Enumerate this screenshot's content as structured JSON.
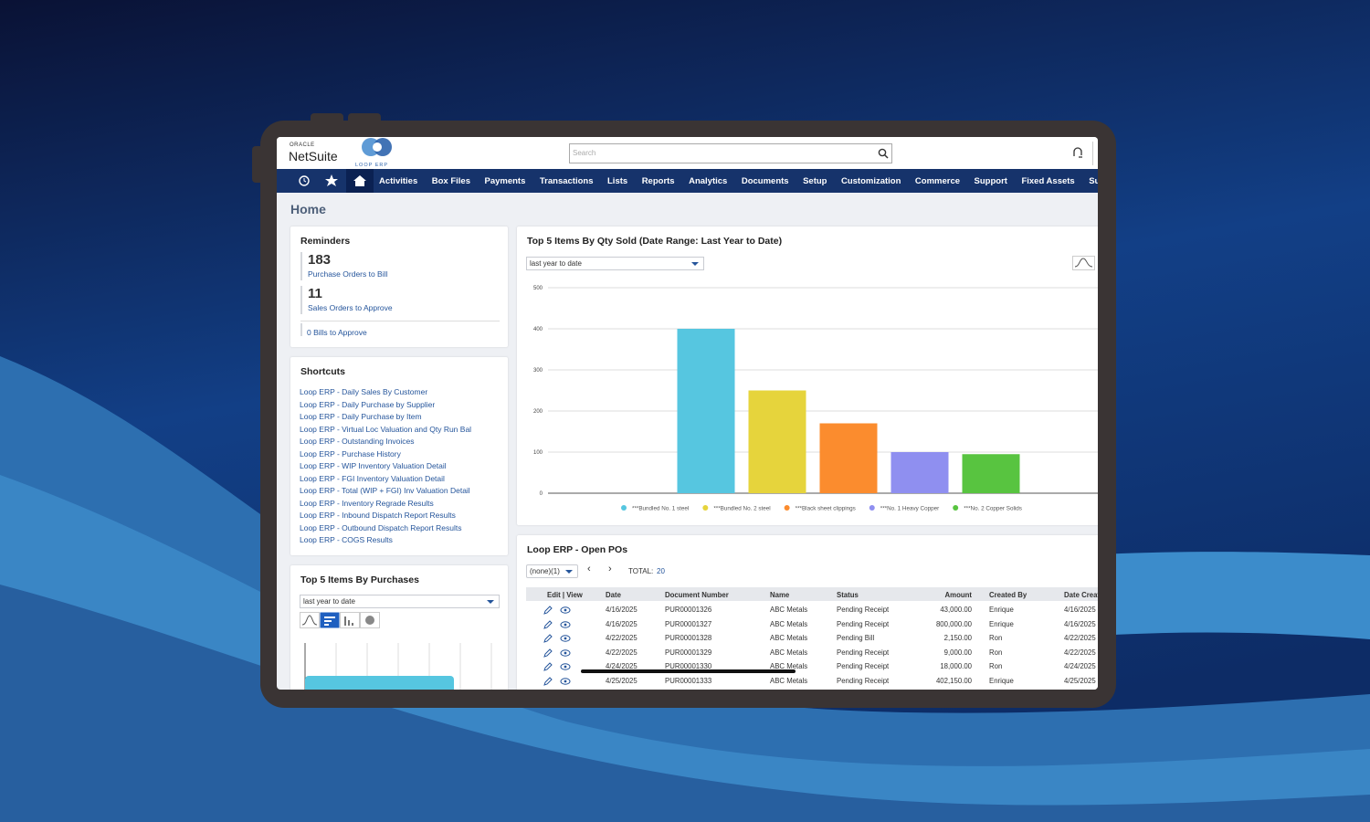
{
  "header": {
    "brand_small": "ORACLE",
    "brand": "NetSuite",
    "logo_text": "LOOP ERP",
    "search_placeholder": "Search"
  },
  "nav": [
    "Activities",
    "Box Files",
    "Payments",
    "Transactions",
    "Lists",
    "Reports",
    "Analytics",
    "Documents",
    "Setup",
    "Customization",
    "Commerce",
    "Support",
    "Fixed Assets",
    "SuiteSocial"
  ],
  "page_title": "Home",
  "reminders": {
    "title": "Reminders",
    "items": [
      {
        "count": 183,
        "label": "Purchase Orders to Bill"
      },
      {
        "count": 11,
        "label": "Sales Orders to Approve"
      }
    ],
    "footer": "0 Bills to Approve"
  },
  "shortcuts": {
    "title": "Shortcuts",
    "links": [
      "Loop ERP - Daily Sales By Customer",
      "Loop ERP - Daily Purchase by Supplier",
      "Loop ERP - Daily Purchase by Item",
      "Loop ERP - Virtual Loc Valuation and Qty Run Bal",
      "Loop ERP - Outstanding Invoices",
      "Loop ERP - Purchase History",
      "Loop ERP - WIP Inventory Valuation Detail",
      "Loop ERP - FGI Inventory Valuation Detail",
      "Loop ERP - Total (WIP + FGI) Inv Valuation Detail",
      "Loop ERP - Inventory Regrade Results",
      "Loop ERP - Inbound Dispatch Report Results",
      "Loop ERP - Outbound Dispatch Report Results",
      "Loop ERP - COGS Results"
    ]
  },
  "purchases": {
    "title": "Top 5 Items By Purchases",
    "select": "last year to date"
  },
  "chart_data": {
    "type": "bar",
    "title": "Top 5 Items By Qty Sold (Date Range: Last Year to Date)",
    "select": "last year to date",
    "categories": [
      "***Bundled No. 1 steel",
      "***Bundled No. 2 steel",
      "***Black sheet clippings",
      "***No. 1 Heavy Copper",
      "***No. 2 Copper Solids"
    ],
    "values": [
      400,
      250,
      170,
      100,
      95
    ],
    "colors": [
      "#56c6e0",
      "#e6d43c",
      "#fb8c2e",
      "#8f8ff0",
      "#58c440"
    ],
    "ylim": [
      0,
      500
    ],
    "yticks": [
      0,
      100,
      200,
      300,
      400,
      500
    ],
    "grid": true,
    "legend": "bottom"
  },
  "open_pos": {
    "title": "Loop ERP - Open POs",
    "filter": "(none)(1)",
    "total_label": "TOTAL:",
    "total": 20,
    "columns": [
      "Edit | View",
      "Date",
      "Document Number",
      "Name",
      "Status",
      "Amount",
      "Created By",
      "Date Created"
    ],
    "rows": [
      [
        "4/16/2025",
        "PUR00001326",
        "ABC Metals",
        "Pending Receipt",
        "43,000.00",
        "Enrique",
        "4/16/2025"
      ],
      [
        "4/16/2025",
        "PUR00001327",
        "ABC Metals",
        "Pending Receipt",
        "800,000.00",
        "Enrique",
        "4/16/2025"
      ],
      [
        "4/22/2025",
        "PUR00001328",
        "ABC Metals",
        "Pending Bill",
        "2,150.00",
        "Ron",
        "4/22/2025"
      ],
      [
        "4/22/2025",
        "PUR00001329",
        "ABC Metals",
        "Pending Receipt",
        "9,000.00",
        "Ron",
        "4/22/2025"
      ],
      [
        "4/24/2025",
        "PUR00001330",
        "ABC Metals",
        "Pending Receipt",
        "18,000.00",
        "Ron",
        "4/24/2025"
      ],
      [
        "4/25/2025",
        "PUR00001333",
        "ABC Metals",
        "Pending Receipt",
        "402,150.00",
        "Enrique",
        "4/25/2025"
      ]
    ]
  }
}
